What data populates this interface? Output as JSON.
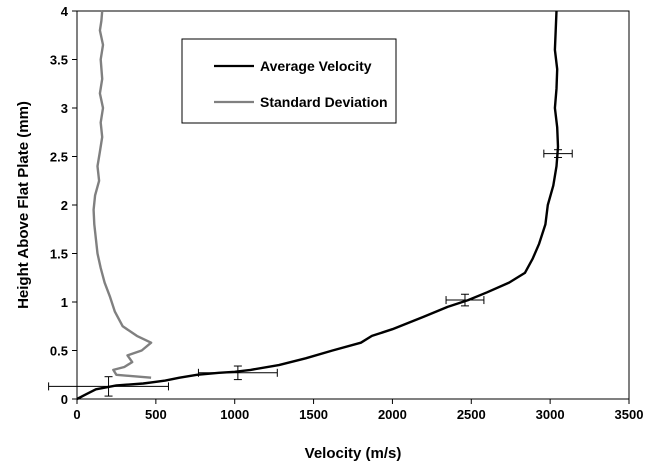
{
  "chart_data": {
    "type": "line",
    "title": "",
    "xlabel": "Velocity (m/s)",
    "ylabel": "Height Above Flat Plate (mm)",
    "xlim": [
      0,
      3500
    ],
    "ylim": [
      0,
      4
    ],
    "x_ticks": [
      "0",
      "500",
      "1000",
      "1500",
      "2000",
      "2500",
      "3000",
      "3500"
    ],
    "y_ticks": [
      "0",
      "0.5",
      "1",
      "1.5",
      "2",
      "2.5",
      "3",
      "3.5",
      "4"
    ],
    "grid": false,
    "legend_position": "top-center",
    "series": [
      {
        "name": "Average Velocity",
        "color": "#000000",
        "points": [
          [
            0,
            0.0
          ],
          [
            60,
            0.05
          ],
          [
            120,
            0.1
          ],
          [
            250,
            0.14
          ],
          [
            420,
            0.16
          ],
          [
            560,
            0.19
          ],
          [
            650,
            0.22
          ],
          [
            760,
            0.25
          ],
          [
            900,
            0.27
          ],
          [
            1000,
            0.28
          ],
          [
            1100,
            0.3
          ],
          [
            1280,
            0.35
          ],
          [
            1450,
            0.42
          ],
          [
            1620,
            0.5
          ],
          [
            1800,
            0.58
          ],
          [
            1870,
            0.65
          ],
          [
            2000,
            0.72
          ],
          [
            2200,
            0.85
          ],
          [
            2350,
            0.95
          ],
          [
            2480,
            1.02
          ],
          [
            2600,
            1.1
          ],
          [
            2740,
            1.2
          ],
          [
            2840,
            1.3
          ],
          [
            2890,
            1.45
          ],
          [
            2930,
            1.6
          ],
          [
            2970,
            1.8
          ],
          [
            2985,
            2.0
          ],
          [
            3020,
            2.2
          ],
          [
            3040,
            2.4
          ],
          [
            3050,
            2.6
          ],
          [
            3045,
            2.8
          ],
          [
            3030,
            3.0
          ],
          [
            3040,
            3.2
          ],
          [
            3045,
            3.4
          ],
          [
            3030,
            3.6
          ],
          [
            3035,
            3.8
          ],
          [
            3040,
            4.0
          ]
        ]
      },
      {
        "name": "Standard Deviation",
        "color": "#808080",
        "points": [
          [
            470,
            0.22
          ],
          [
            250,
            0.25
          ],
          [
            230,
            0.3
          ],
          [
            300,
            0.33
          ],
          [
            350,
            0.38
          ],
          [
            320,
            0.45
          ],
          [
            410,
            0.5
          ],
          [
            470,
            0.58
          ],
          [
            380,
            0.65
          ],
          [
            290,
            0.75
          ],
          [
            240,
            0.9
          ],
          [
            210,
            1.05
          ],
          [
            175,
            1.2
          ],
          [
            150,
            1.35
          ],
          [
            130,
            1.5
          ],
          [
            120,
            1.65
          ],
          [
            110,
            1.8
          ],
          [
            105,
            1.95
          ],
          [
            115,
            2.1
          ],
          [
            140,
            2.25
          ],
          [
            130,
            2.4
          ],
          [
            145,
            2.55
          ],
          [
            160,
            2.7
          ],
          [
            150,
            2.85
          ],
          [
            165,
            3.0
          ],
          [
            145,
            3.15
          ],
          [
            160,
            3.3
          ],
          [
            150,
            3.5
          ],
          [
            165,
            3.65
          ],
          [
            145,
            3.8
          ],
          [
            155,
            3.9
          ],
          [
            160,
            4.0
          ]
        ]
      }
    ],
    "error_bars": [
      {
        "x": 200,
        "y": 0.13,
        "x_err": 380,
        "y_err": 0.1
      },
      {
        "x": 1020,
        "y": 0.27,
        "x_err": 250,
        "y_err": 0.07
      },
      {
        "x": 2460,
        "y": 1.02,
        "x_err": 120,
        "y_err": 0.06
      },
      {
        "x": 3050,
        "y": 2.53,
        "x_err": 90,
        "y_err": 0.04
      }
    ]
  }
}
